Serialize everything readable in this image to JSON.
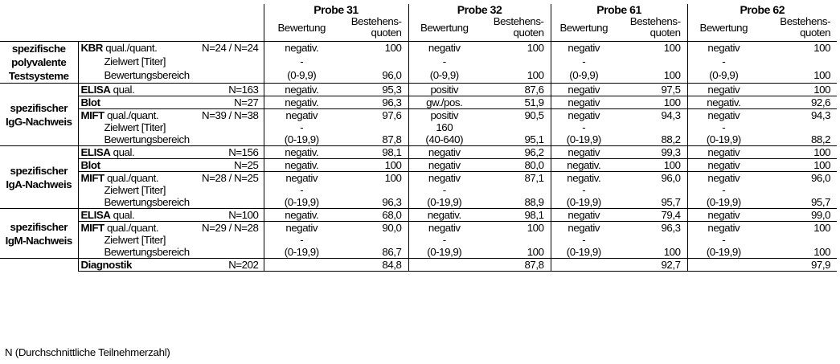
{
  "headers": {
    "probes": [
      "Probe 31",
      "Probe 32",
      "Probe 61",
      "Probe 62"
    ],
    "bewertung": "Bewertung",
    "quote_line1": "Bestehens-",
    "quote_line2": "quoten"
  },
  "groups": {
    "g1": "spezifische polyvalente Testsysteme",
    "g2": "spezifischer IgG-Nachweis",
    "g3": "spezifischer IgA-Nachweis",
    "g4": "spezifischer IgM-Nachweis"
  },
  "sub": {
    "zielwert": "Zielwert [Titer]",
    "bewertungsbereich": "Bewertungsbereich",
    "qual_quant": "qual./quant.",
    "qual": "qual."
  },
  "rows": {
    "kbr": {
      "name": "KBR",
      "n": "N=24 / N=24",
      "p31": [
        "negativ.",
        "-",
        "(0-9,9)"
      ],
      "q31": [
        "100",
        "",
        "96,0"
      ],
      "p32": [
        "negativ",
        "-",
        "(0-9,9)"
      ],
      "q32": [
        "100",
        "",
        "100"
      ],
      "p61": [
        "negativ",
        "-",
        "(0-9,9)"
      ],
      "q61": [
        "100",
        "",
        "100"
      ],
      "p62": [
        "negativ",
        "-",
        "(0-9,9)"
      ],
      "q62": [
        "100",
        "",
        "100"
      ]
    },
    "igg_elisa": {
      "name": "ELISA",
      "n": "N=163",
      "vals": [
        "negativ.",
        "95,3",
        "positiv",
        "87,6",
        "negativ",
        "97,5",
        "negativ",
        "100"
      ]
    },
    "igg_blot": {
      "name": "Blot",
      "n": "N=27",
      "vals": [
        "negativ.",
        "96,3",
        "gw./pos.",
        "51,9",
        "negativ",
        "100",
        "negativ.",
        "92,6"
      ]
    },
    "igg_mift": {
      "name": "MIFT",
      "n": "N=39 / N=38",
      "p31": [
        "negativ",
        "-",
        "(0-19,9)"
      ],
      "q31": [
        "97,6",
        "",
        "87,8"
      ],
      "p32": [
        "positiv",
        "160",
        "(40-640)"
      ],
      "q32": [
        "90,5",
        "",
        "95,1"
      ],
      "p61": [
        "negativ",
        "-",
        "(0-19,9)"
      ],
      "q61": [
        "94,3",
        "",
        "88,2"
      ],
      "p62": [
        "negativ",
        "-",
        "(0-19,9)"
      ],
      "q62": [
        "94,3",
        "",
        "88,2"
      ]
    },
    "iga_elisa": {
      "name": "ELISA",
      "n": "N=156",
      "vals": [
        "negativ.",
        "98,1",
        "negativ",
        "96,2",
        "negativ",
        "99,3",
        "negativ",
        "100"
      ]
    },
    "iga_blot": {
      "name": "Blot",
      "n": "N=25",
      "vals": [
        "negativ.",
        "100",
        "negativ",
        "80,0",
        "negativ.",
        "100",
        "negativ",
        "100"
      ]
    },
    "iga_mift": {
      "name": "MIFT",
      "n": "N=28 / N=25",
      "p31": [
        "negativ",
        "-",
        "(0-19,9)"
      ],
      "q31": [
        "100",
        "",
        "96,3"
      ],
      "p32": [
        "negativ",
        "-",
        "(0-19,9)"
      ],
      "q32": [
        "87,1",
        "",
        "88,9"
      ],
      "p61": [
        "negativ.",
        "-",
        "(0-19,9)"
      ],
      "q61": [
        "96,0",
        "",
        "95,7"
      ],
      "p62": [
        "negativ",
        "-",
        "(0-19,9)"
      ],
      "q62": [
        "96,0",
        "",
        "95,7"
      ]
    },
    "igm_elisa": {
      "name": "ELISA",
      "n": "N=100",
      "vals": [
        "negativ.",
        "68,0",
        "negativ.",
        "98,1",
        "negativ",
        "79,4",
        "negativ",
        "99,0"
      ]
    },
    "igm_mift": {
      "name": "MIFT",
      "n": "N=29 / N=28",
      "p31": [
        "negativ",
        "-",
        "(0-19,9)"
      ],
      "q31": [
        "90,0",
        "",
        "86,7"
      ],
      "p32": [
        "negativ",
        "-",
        "(0-19,9)"
      ],
      "q32": [
        "100",
        "",
        "100"
      ],
      "p61": [
        "negativ",
        "-",
        "(0-19,9)"
      ],
      "q61": [
        "96,3",
        "",
        "100"
      ],
      "p62": [
        "negativ",
        "-",
        "(0-19,9)"
      ],
      "q62": [
        "100",
        "",
        "100"
      ]
    },
    "diag": {
      "name": "Diagnostik",
      "n": "N=202",
      "q": [
        "84,8",
        "87,8",
        "92,7",
        "97,9"
      ]
    }
  },
  "footnote": "N (Durchschnittliche Teilnehmerzahl)"
}
